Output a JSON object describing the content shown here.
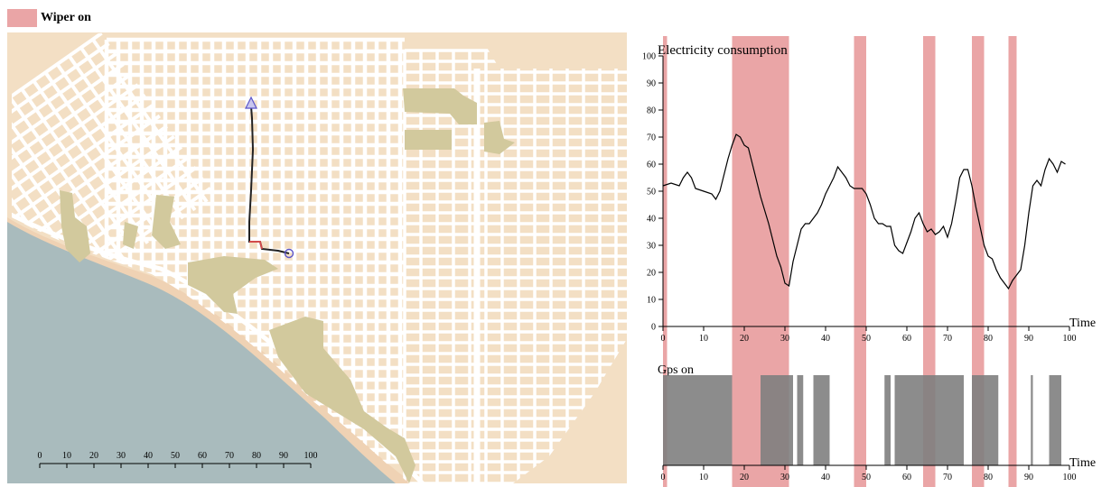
{
  "legend": {
    "label": "Wiper on",
    "color": "#eaa5a6"
  },
  "colors": {
    "land": "#f3dfc4",
    "sea": "#a9bbbd",
    "park": "#d2c99d",
    "road": "#ffffff",
    "route": "#222222",
    "route_alt": "#d24b4b",
    "marker": "#5b55c9",
    "line": "#000000",
    "bars": "#808080"
  },
  "map": {
    "scale_ticks": [
      "0",
      "10",
      "20",
      "30",
      "40",
      "50",
      "60",
      "70",
      "80",
      "90",
      "100"
    ]
  },
  "chart_data": [
    {
      "type": "line",
      "title": "Electricity consumption",
      "xlabel": "Time",
      "ylabel": "",
      "xlim": [
        0,
        100
      ],
      "ylim": [
        0,
        100
      ],
      "x_ticks": [
        "0",
        "10",
        "20",
        "30",
        "40",
        "50",
        "60",
        "70",
        "80",
        "90",
        "100"
      ],
      "y_ticks": [
        "0",
        "10",
        "20",
        "30",
        "40",
        "50",
        "60",
        "70",
        "80",
        "90",
        "100"
      ],
      "grid": false,
      "x": [
        0,
        2,
        4,
        5,
        6,
        7,
        8,
        10,
        12,
        13,
        14,
        15,
        16,
        17,
        18,
        19,
        20,
        21,
        22,
        24,
        26,
        28,
        29,
        30,
        31,
        32,
        33,
        34,
        35,
        36,
        37,
        38,
        39,
        40,
        41,
        42,
        43,
        44,
        45,
        46,
        47,
        48,
        49,
        50,
        51,
        52,
        53,
        54,
        55,
        56,
        57,
        58,
        59,
        60,
        61,
        62,
        63,
        64,
        65,
        66,
        67,
        68,
        69,
        70,
        71,
        72,
        73,
        74,
        75,
        76,
        77,
        78,
        79,
        80,
        81,
        82,
        83,
        84,
        85,
        86,
        87,
        88,
        89,
        90,
        91,
        92,
        93,
        94,
        95,
        96,
        97,
        98,
        99
      ],
      "series": [
        {
          "values": [
            52,
            53,
            52,
            55,
            57,
            55,
            51,
            50,
            49,
            47,
            50,
            56,
            62,
            67,
            71,
            70,
            67,
            66,
            60,
            48,
            38,
            26,
            22,
            16,
            15,
            24,
            30,
            36,
            38,
            38,
            40,
            42,
            45,
            49,
            52,
            55,
            59,
            57,
            55,
            52,
            51,
            51,
            51,
            49,
            45,
            40,
            38,
            38,
            37,
            37,
            30,
            28,
            27,
            31,
            35,
            40,
            42,
            38,
            35,
            36,
            34,
            35,
            37,
            33,
            38,
            46,
            55,
            58,
            58,
            52,
            44,
            37,
            30,
            26,
            25,
            21,
            18,
            16,
            14,
            17,
            19,
            21,
            30,
            42,
            52,
            54,
            52,
            58,
            62,
            60,
            57,
            61,
            60
          ]
        }
      ],
      "wiper_intervals": [
        [
          0,
          1
        ],
        [
          17,
          31
        ],
        [
          47,
          50
        ],
        [
          64,
          67
        ],
        [
          76,
          79
        ],
        [
          85,
          87
        ]
      ]
    },
    {
      "type": "bar",
      "title": "Gps on",
      "xlabel": "Time",
      "xlim": [
        0,
        100
      ],
      "x_ticks": [
        "0",
        "10",
        "20",
        "30",
        "40",
        "50",
        "60",
        "70",
        "80",
        "90",
        "100"
      ],
      "on_intervals": [
        [
          0,
          17
        ],
        [
          24,
          32
        ],
        [
          33,
          34.5
        ],
        [
          37,
          41
        ],
        [
          54.5,
          56
        ],
        [
          57,
          74
        ],
        [
          76,
          82.5
        ],
        [
          90.5,
          91
        ],
        [
          95,
          98
        ]
      ]
    }
  ]
}
